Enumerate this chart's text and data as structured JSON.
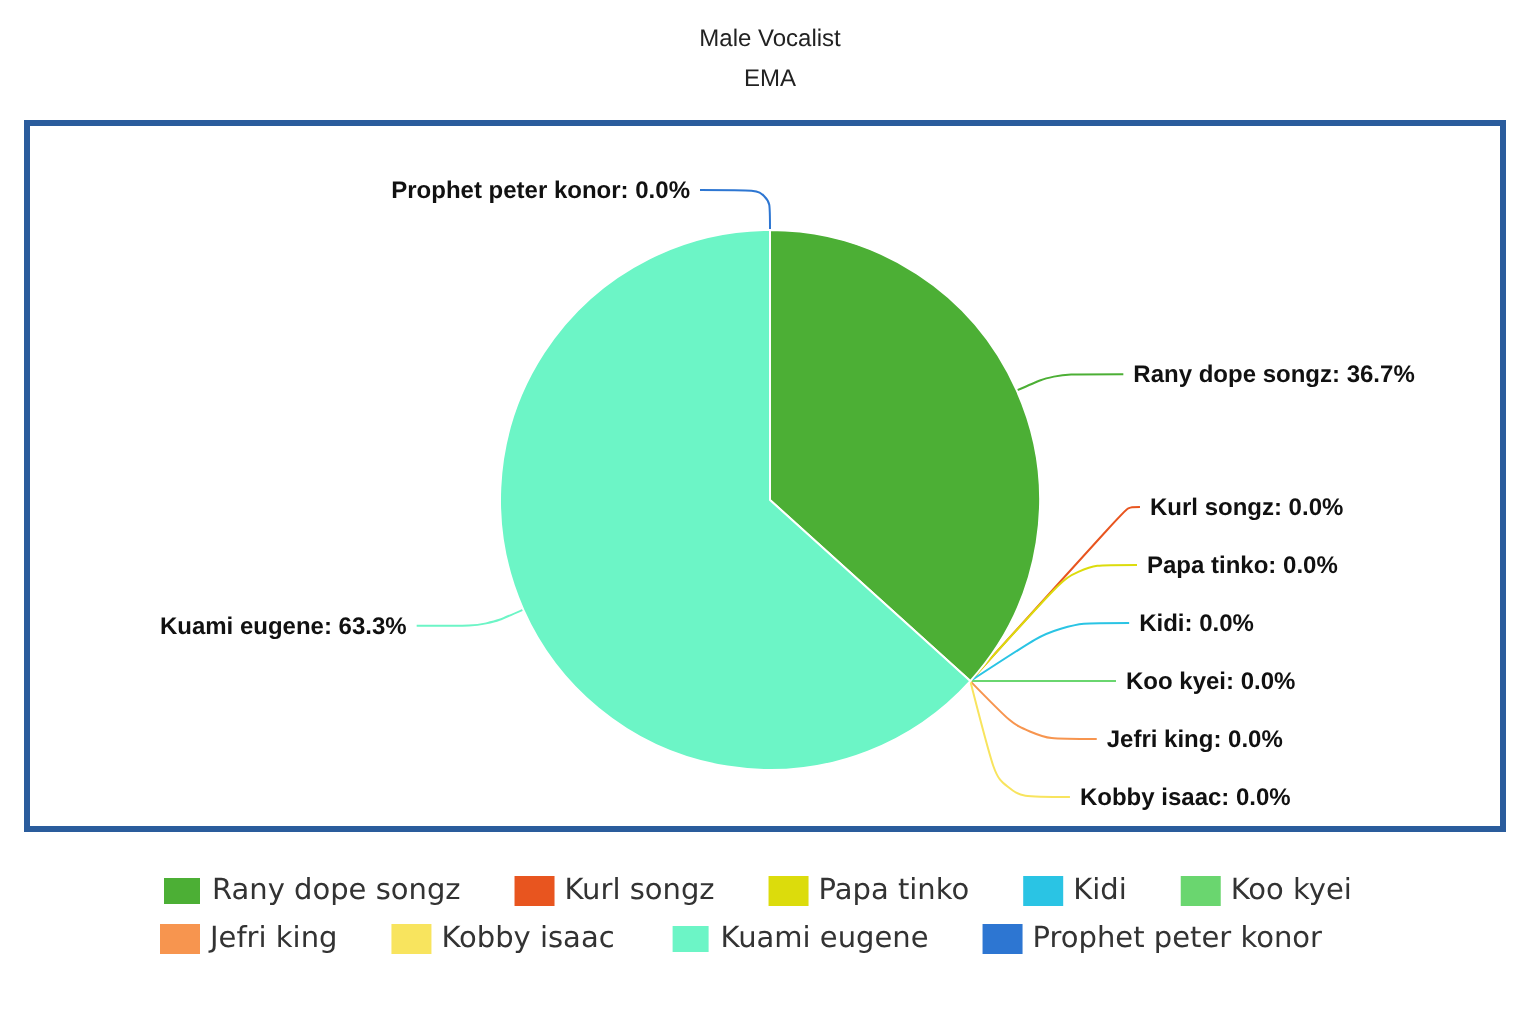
{
  "chart_data": {
    "type": "pie",
    "title": "Male Vocalist",
    "subtitle": "EMA",
    "categories": [
      "Rany dope songz",
      "Kurl songz",
      "Papa tinko",
      "Kidi",
      "Koo kyei",
      "Jefri king",
      "Kobby isaac",
      "Kuami eugene",
      "Prophet peter konor"
    ],
    "values": [
      36.7,
      0.0,
      0.0,
      0.0,
      0.0,
      0.0,
      0.0,
      63.3,
      0.0
    ],
    "colors": [
      "#4caf35",
      "#e8551f",
      "#dcdc0c",
      "#2ac4e4",
      "#6ad66f",
      "#f7954f",
      "#f8e45e",
      "#6cf5c6",
      "#2d76d2"
    ],
    "value_labels": [
      "Rany dope songz: 36.7%",
      "Kurl songz: 0.0%",
      "Papa tinko: 0.0%",
      "Kidi: 0.0%",
      "Koo kyei: 0.0%",
      "Jefri king: 0.0%",
      "Kobby isaac: 0.0%",
      "Kuami eugene: 63.3%",
      "Prophet peter konor: 0.0%"
    ],
    "legend": "bottom"
  }
}
